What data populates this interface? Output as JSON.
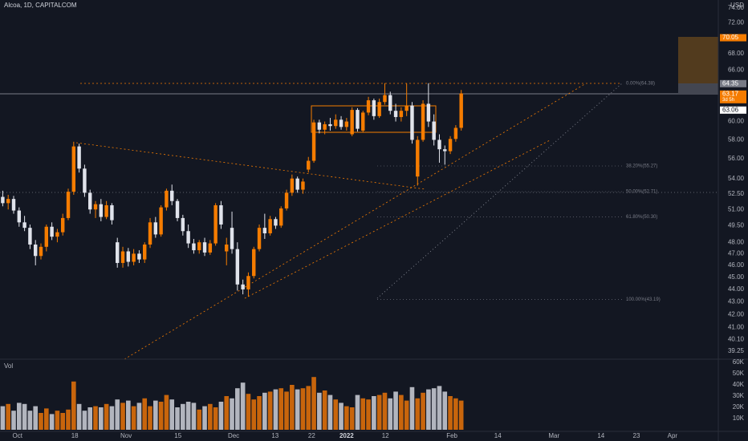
{
  "chart_data": {
    "type": "candlestick",
    "title": "Alcoa, 1D, CAPITALCOM",
    "currency": "USD",
    "volume_label": "Vol",
    "ylog": true,
    "up_color": "#f57c00",
    "down_color": "#e0e3eb",
    "volume_up_color": "#c8650c",
    "volume_down_color": "#b2b5be",
    "xlim": [
      -0.5,
      131.1
    ],
    "ylim": [
      39.25,
      74
    ],
    "vlim": [
      0,
      60000
    ],
    "xticks": [
      {
        "value": 2.7,
        "label": "Oct"
      },
      {
        "value": 13.2,
        "label": "18"
      },
      {
        "value": 22.6,
        "label": "Nov"
      },
      {
        "value": 32.1,
        "label": "15"
      },
      {
        "value": 42.3,
        "label": "Dec"
      },
      {
        "value": 49.9,
        "label": "13"
      },
      {
        "value": 56.6,
        "label": "22"
      },
      {
        "value": 63,
        "label": "2022"
      },
      {
        "value": 70.1,
        "label": "12"
      },
      {
        "value": 82.3,
        "label": "Feb"
      },
      {
        "value": 90.7,
        "label": "14"
      },
      {
        "value": 101,
        "label": "Mar"
      },
      {
        "value": 109.6,
        "label": "14"
      },
      {
        "value": 116.1,
        "label": "23"
      },
      {
        "value": 122.7,
        "label": "Apr"
      }
    ],
    "yticks": [
      {
        "value": 74,
        "label": "74.00"
      },
      {
        "value": 72,
        "label": "72.00"
      },
      {
        "value": 68,
        "label": "68.00"
      },
      {
        "value": 66,
        "label": "66.00"
      },
      {
        "value": 60,
        "label": "60.00"
      },
      {
        "value": 58,
        "label": "58.00"
      },
      {
        "value": 56,
        "label": "56.00"
      },
      {
        "value": 54,
        "label": "54.00"
      },
      {
        "value": 52.5,
        "label": "52.50"
      },
      {
        "value": 51,
        "label": "51.00"
      },
      {
        "value": 49.5,
        "label": "49.50"
      },
      {
        "value": 48,
        "label": "48.00"
      },
      {
        "value": 47,
        "label": "47.00"
      },
      {
        "value": 46,
        "label": "46.00"
      },
      {
        "value": 45,
        "label": "45.00"
      },
      {
        "value": 44,
        "label": "44.00"
      },
      {
        "value": 43,
        "label": "43.00"
      },
      {
        "value": 42,
        "label": "42.00"
      },
      {
        "value": 41,
        "label": "41.00"
      },
      {
        "value": 40.1,
        "label": "40.10"
      },
      {
        "value": 39.25,
        "label": "39.25"
      }
    ],
    "vticks": [
      {
        "value": 60000,
        "label": "60K"
      },
      {
        "value": 50000,
        "label": "50K"
      },
      {
        "value": 40000,
        "label": "40K"
      },
      {
        "value": 30000,
        "label": "30K"
      },
      {
        "value": 20000,
        "label": "20K"
      },
      {
        "value": 10000,
        "label": "10K"
      }
    ],
    "price_labels": [
      {
        "value": 70.05,
        "color": "#f57c00",
        "text_color": "#ffffff"
      },
      {
        "value": 64.35,
        "color": "#787b86",
        "text_color": "#ffffff"
      },
      {
        "value": 63.17,
        "color": "#f57c00",
        "text_color": "#ffffff",
        "countdown": "3d 5h"
      },
      {
        "value": 63.06,
        "color": "#ffffff",
        "text_color": "#131722"
      }
    ],
    "fib_levels": [
      {
        "label": "0.00%(64.38)",
        "price": 64.38
      },
      {
        "label": "38.20%(55.27)",
        "price": 55.27
      },
      {
        "label": "50.00%(52.71)",
        "price": 52.71
      },
      {
        "label": "61.80%(50.30)",
        "price": 50.3
      },
      {
        "label": "100.00%(43.19)",
        "price": 43.19
      }
    ],
    "open": [
      52.2,
      51.6,
      52.0,
      50.9,
      49.8,
      49.3,
      47.8,
      46.8,
      47.6,
      49.4,
      48.5,
      48.9,
      50.2,
      52.7,
      57.3,
      55.0,
      52.6,
      51.0,
      51.5,
      50.3,
      51.4,
      48.0,
      46.2,
      47.2,
      46.3,
      47.0,
      46.5,
      47.8,
      49.8,
      48.7,
      51.2,
      52.8,
      51.8,
      50.2,
      49.0,
      47.9,
      47.3,
      48.0,
      47.1,
      47.9,
      51.4,
      47.2,
      49.3,
      47.4,
      44.4,
      44.0,
      45.1,
      47.4,
      49.3,
      48.8,
      50.1,
      49.5,
      51.1,
      52.6,
      54.0,
      52.9,
      54.9,
      55.8,
      59.9,
      59.1,
      59.7,
      59.5,
      60.2,
      59.4,
      58.6,
      61.3,
      59.0,
      61.0,
      62.4,
      60.6,
      62.2,
      63.0,
      61.2,
      60.5,
      61.2,
      61.8,
      54.2,
      58.0,
      62.0,
      60.0,
      58.0,
      57.0,
      56.8,
      58.1,
      59.3
    ],
    "high": [
      52.8,
      52.4,
      52.3,
      51.2,
      50.4,
      49.6,
      48.2,
      47.9,
      49.6,
      49.8,
      49.2,
      50.6,
      53.0,
      57.8,
      57.6,
      55.4,
      52.9,
      51.8,
      52.0,
      51.8,
      51.6,
      48.4,
      47.6,
      47.5,
      47.4,
      47.3,
      48.0,
      50.2,
      50.3,
      51.4,
      53.0,
      53.4,
      52.0,
      50.5,
      49.6,
      48.3,
      48.2,
      48.4,
      48.2,
      51.6,
      51.8,
      48.4,
      50.8,
      48.0,
      44.8,
      45.4,
      47.6,
      49.6,
      50.6,
      50.4,
      50.3,
      51.3,
      52.9,
      54.4,
      54.2,
      54.0,
      56.2,
      60.2,
      60.2,
      60.0,
      60.4,
      60.8,
      60.6,
      60.4,
      61.6,
      61.5,
      61.2,
      62.8,
      62.6,
      62.6,
      64.4,
      63.4,
      62.0,
      61.6,
      64.4,
      62.2,
      58.4,
      62.4,
      64.4,
      60.8,
      58.6,
      57.4,
      58.4,
      59.6,
      63.6
    ],
    "low": [
      51.3,
      51.0,
      50.6,
      49.4,
      49.0,
      47.4,
      46.0,
      46.5,
      47.2,
      48.2,
      48.0,
      48.6,
      50.0,
      52.4,
      54.6,
      52.2,
      50.6,
      50.2,
      49.9,
      50.1,
      49.6,
      45.8,
      45.8,
      45.9,
      46.0,
      46.2,
      46.2,
      47.5,
      48.4,
      48.5,
      50.9,
      51.4,
      49.9,
      48.6,
      47.5,
      47.0,
      47.0,
      46.8,
      46.9,
      47.7,
      49.2,
      46.0,
      47.0,
      43.9,
      43.6,
      43.4,
      44.9,
      47.2,
      48.3,
      48.6,
      49.2,
      49.3,
      50.9,
      52.3,
      52.6,
      52.5,
      54.6,
      55.6,
      58.7,
      58.6,
      59.0,
      59.2,
      59.1,
      59.0,
      58.4,
      58.9,
      58.8,
      60.7,
      60.2,
      60.4,
      61.9,
      60.8,
      60.0,
      60.0,
      60.6,
      57.6,
      53.3,
      57.8,
      59.4,
      57.4,
      55.6,
      55.4,
      56.5,
      57.8,
      59.0
    ],
    "close": [
      51.6,
      52.0,
      50.9,
      49.8,
      49.3,
      47.8,
      46.8,
      47.6,
      49.4,
      48.5,
      48.9,
      50.2,
      52.7,
      57.3,
      55.0,
      52.6,
      51.0,
      51.5,
      50.3,
      51.4,
      50.0,
      46.2,
      47.2,
      46.3,
      47.0,
      46.5,
      47.8,
      49.8,
      48.7,
      51.2,
      52.8,
      51.8,
      50.2,
      49.0,
      47.9,
      47.3,
      48.0,
      47.1,
      47.9,
      51.4,
      49.6,
      47.8,
      47.4,
      44.4,
      44.0,
      45.1,
      47.4,
      49.3,
      48.8,
      50.1,
      49.5,
      51.1,
      52.6,
      54.0,
      52.9,
      53.7,
      55.8,
      59.9,
      59.1,
      59.7,
      59.5,
      60.2,
      59.4,
      60.0,
      61.3,
      59.2,
      61.0,
      62.4,
      60.6,
      62.2,
      63.0,
      61.2,
      60.5,
      61.2,
      61.8,
      58.0,
      58.0,
      62.0,
      60.0,
      58.0,
      57.0,
      56.8,
      58.1,
      59.3,
      63.2
    ],
    "volume": [
      21000,
      23000,
      17000,
      24000,
      23000,
      17000,
      21000,
      15000,
      19000,
      14000,
      17000,
      15000,
      18000,
      43000,
      23000,
      17000,
      20000,
      21000,
      20000,
      23000,
      21000,
      27000,
      24000,
      26000,
      21000,
      24000,
      28000,
      21000,
      26000,
      25000,
      31000,
      27000,
      20000,
      23000,
      25000,
      24000,
      18000,
      21000,
      23000,
      20000,
      25000,
      30000,
      28000,
      37000,
      42000,
      32000,
      27000,
      30000,
      33000,
      34000,
      36000,
      37000,
      34000,
      40000,
      36000,
      37000,
      39000,
      47000,
      33000,
      35000,
      31000,
      27000,
      24000,
      21000,
      20000,
      31000,
      28000,
      27000,
      30000,
      31000,
      33000,
      28000,
      34000,
      31000,
      26000,
      38000,
      28000,
      33000,
      36000,
      37000,
      39000,
      34000,
      30000,
      28000,
      26000
    ]
  }
}
